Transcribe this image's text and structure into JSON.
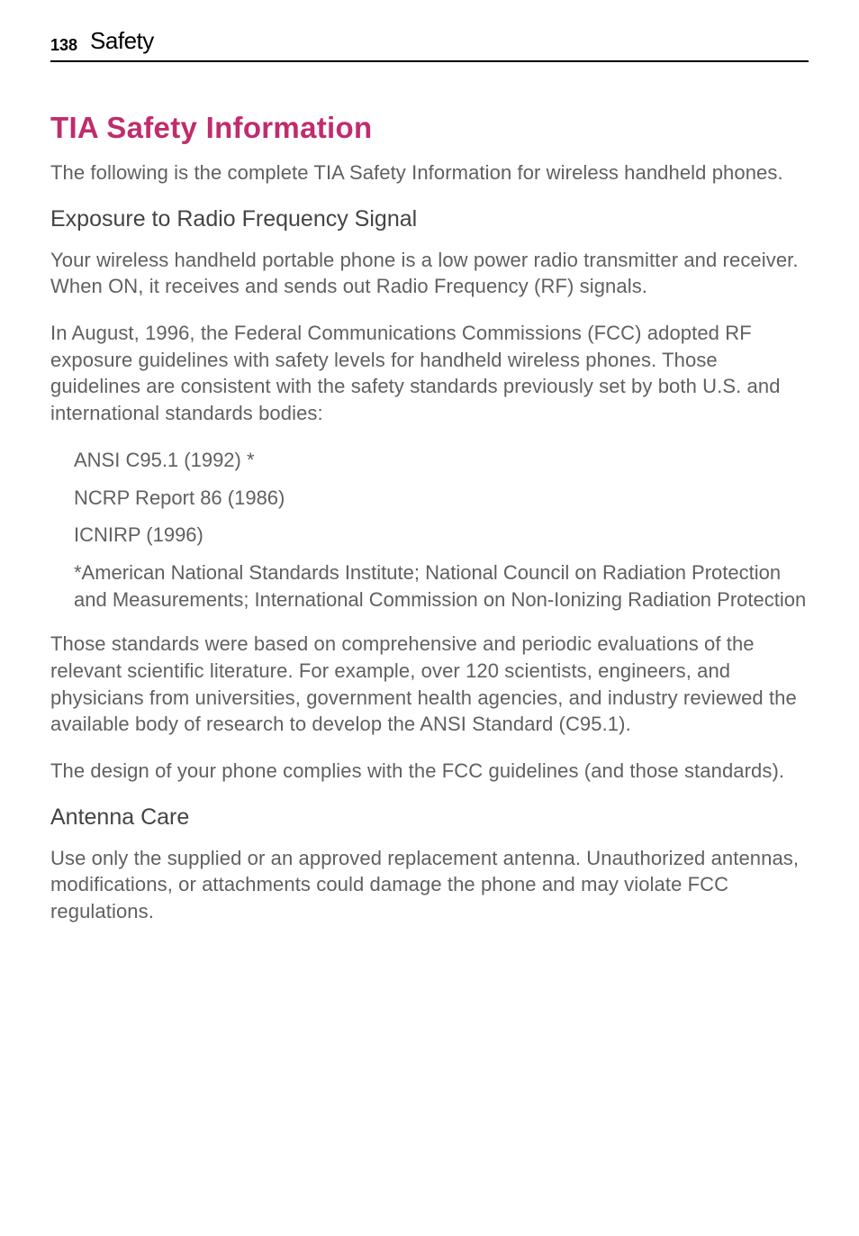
{
  "header": {
    "page_number": "138",
    "section": "Safety"
  },
  "main": {
    "title": "TIA Safety Information",
    "intro": "The following is the complete TIA Safety Information for wireless handheld phones.",
    "heading1": "Exposure to Radio Frequency Signal",
    "p1": "Your wireless handheld portable phone is a low power radio transmitter and receiver. When ON, it receives and sends out Radio Frequency (RF) signals.",
    "p2": "In August, 1996, the Federal Communications Commissions (FCC) adopted RF exposure guidelines with safety levels for handheld wireless phones. Those guidelines are consistent with the safety standards previously set by both U.S. and international standards bodies:",
    "list1": "ANSI C95.1 (1992) *",
    "list2": "NCRP Report 86 (1986)",
    "list3": "ICNIRP (1996)",
    "list_note": "*American National Standards Institute; National Council on Radiation Protection and Measurements; International Commission on  Non-Ionizing Radiation Protection",
    "p3": "Those standards were based on comprehensive and periodic evaluations of the relevant scientific literature. For example, over 120 scientists, engineers, and physicians from universities, government health agencies, and industry reviewed the available body of research to develop the ANSI Standard (C95.1).",
    "p4": "The design of your phone complies with the FCC guidelines (and those standards).",
    "heading2": "Antenna Care",
    "p5": "Use only the supplied or an approved replacement antenna. Unauthorized antennas, modifications, or attachments could damage the phone and may violate FCC regulations."
  },
  "colors": {
    "title_color": "#c02c6d",
    "body_text_color": "#606060",
    "heading_color": "#444444",
    "header_text_color": "#000000",
    "border_color": "#000000",
    "background": "#ffffff"
  },
  "typography": {
    "title_fontsize": 33,
    "subheading_fontsize": 25,
    "body_fontsize": 22,
    "page_number_fontsize": 18,
    "section_name_fontsize": 26
  }
}
